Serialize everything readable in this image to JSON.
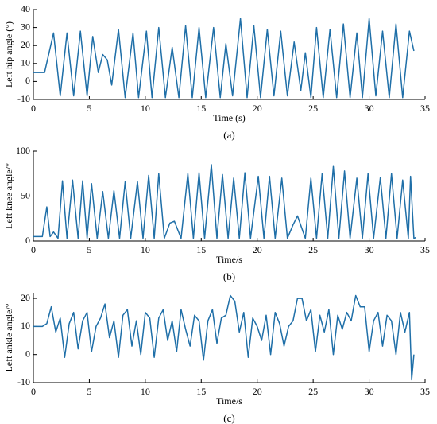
{
  "chart_data": [
    {
      "type": "line",
      "xlabel": "Time (s)",
      "ylabel": "Left hip angle (°)",
      "caption": "(a)",
      "color": "#1f6fa8",
      "xlim": [
        0,
        35
      ],
      "xticks": [
        0,
        5,
        10,
        15,
        20,
        25,
        30,
        35
      ],
      "ylim": [
        -10,
        40
      ],
      "yticks": [
        -10,
        0,
        10,
        20,
        30,
        40
      ],
      "x": [
        0,
        1.0,
        1.8,
        2.4,
        3.0,
        3.6,
        4.2,
        4.8,
        5.3,
        5.8,
        6.2,
        6.6,
        7.0,
        7.6,
        8.2,
        8.9,
        9.4,
        10.1,
        10.6,
        11.2,
        11.8,
        12.4,
        13.0,
        13.6,
        14.2,
        14.8,
        15.4,
        16.1,
        16.7,
        17.2,
        17.8,
        18.5,
        19.1,
        19.7,
        20.3,
        20.9,
        21.5,
        22.1,
        22.7,
        23.3,
        23.9,
        24.3,
        24.8,
        25.3,
        25.9,
        26.5,
        27.1,
        27.7,
        28.3,
        28.9,
        29.4,
        30.0,
        30.6,
        31.2,
        31.8,
        32.4,
        33.0,
        33.6,
        34.0
      ],
      "values": [
        5,
        5,
        27,
        -8,
        27,
        -8,
        28,
        -8,
        25,
        5,
        15,
        12,
        -2,
        29,
        -9,
        27,
        -9,
        28,
        -9,
        30,
        -9,
        19,
        -9,
        31,
        -9,
        30,
        -9,
        30,
        -9,
        21,
        -8,
        35,
        -9,
        31,
        -9,
        29,
        -8,
        28,
        -8,
        22,
        -5,
        16,
        -9,
        30,
        -9,
        29,
        -9,
        32,
        -9,
        27,
        -9,
        35,
        -8,
        28,
        -9,
        32,
        -9,
        28,
        17
      ]
    },
    {
      "type": "line",
      "xlabel": "Time/s",
      "ylabel": "Left knee angle/°",
      "caption": "(b)",
      "color": "#1f6fa8",
      "xlim": [
        0,
        35
      ],
      "xticks": [
        0,
        5,
        10,
        15,
        20,
        25,
        30,
        35
      ],
      "ylim": [
        0,
        100
      ],
      "yticks": [
        0,
        50,
        100
      ],
      "x": [
        0,
        0.8,
        1.2,
        1.5,
        1.8,
        2.2,
        2.6,
        3.0,
        3.5,
        4.0,
        4.4,
        4.8,
        5.2,
        5.7,
        6.2,
        6.7,
        7.2,
        7.7,
        8.2,
        8.7,
        9.3,
        9.8,
        10.3,
        10.8,
        11.2,
        11.7,
        12.2,
        12.6,
        13.2,
        13.8,
        14.3,
        14.8,
        15.3,
        15.9,
        16.4,
        16.9,
        17.4,
        17.9,
        18.4,
        18.9,
        19.4,
        20.1,
        20.6,
        21.1,
        21.6,
        22.2,
        22.7,
        23.2,
        23.6,
        24.3,
        24.8,
        25.3,
        25.8,
        26.3,
        26.8,
        27.3,
        27.8,
        28.3,
        28.9,
        29.4,
        29.9,
        30.4,
        31.0,
        31.5,
        32.0,
        32.5,
        33.0,
        33.5,
        33.7,
        34.0,
        34.2
      ],
      "values": [
        5,
        5,
        38,
        5,
        10,
        3,
        67,
        3,
        68,
        3,
        67,
        3,
        64,
        3,
        55,
        3,
        56,
        3,
        66,
        3,
        66,
        3,
        73,
        3,
        75,
        3,
        20,
        22,
        3,
        75,
        3,
        76,
        3,
        85,
        3,
        74,
        3,
        70,
        3,
        76,
        3,
        72,
        3,
        72,
        3,
        70,
        3,
        18,
        28,
        3,
        70,
        3,
        75,
        3,
        83,
        3,
        78,
        3,
        70,
        3,
        75,
        3,
        71,
        3,
        75,
        3,
        68,
        3,
        72,
        3,
        4
      ]
    },
    {
      "type": "line",
      "xlabel": "Time/s",
      "ylabel": "Left ankle angle/°",
      "caption": "(c)",
      "color": "#1f6fa8",
      "xlim": [
        0,
        35
      ],
      "xticks": [
        0,
        5,
        10,
        15,
        20,
        25,
        30,
        35
      ],
      "ylim": [
        -10,
        22
      ],
      "yticks": [
        -10,
        0,
        10,
        20
      ],
      "x": [
        0,
        0.4,
        0.8,
        1.2,
        1.6,
        2.0,
        2.4,
        2.8,
        3.2,
        3.6,
        4.0,
        4.4,
        4.8,
        5.2,
        5.6,
        6.0,
        6.4,
        6.8,
        7.2,
        7.6,
        8.0,
        8.4,
        8.8,
        9.2,
        9.6,
        10.0,
        10.4,
        10.8,
        11.2,
        11.6,
        12.0,
        12.4,
        12.8,
        13.2,
        13.6,
        14.0,
        14.4,
        14.8,
        15.2,
        15.6,
        16.0,
        16.4,
        16.8,
        17.2,
        17.6,
        18.0,
        18.4,
        18.8,
        19.2,
        19.6,
        20.0,
        20.4,
        20.8,
        21.2,
        21.6,
        22.0,
        22.4,
        22.8,
        23.2,
        23.6,
        24.0,
        24.4,
        24.8,
        25.2,
        25.6,
        26.0,
        26.4,
        26.8,
        27.2,
        27.6,
        28.0,
        28.4,
        28.8,
        29.2,
        29.6,
        30.0,
        30.4,
        30.8,
        31.2,
        31.6,
        32.0,
        32.4,
        32.8,
        33.2,
        33.6,
        33.8,
        34.0
      ],
      "values": [
        10,
        10,
        10,
        11,
        17,
        8,
        13,
        -1,
        11,
        15,
        2,
        12,
        15,
        1,
        10,
        13,
        18,
        6,
        12,
        -1,
        14,
        16,
        3,
        12,
        0,
        15,
        13,
        -1,
        13,
        16,
        5,
        12,
        1,
        16,
        9,
        3,
        14,
        12,
        -2,
        12,
        16,
        4,
        13,
        14,
        21,
        19,
        8,
        15,
        -1,
        13,
        10,
        5,
        14,
        0,
        15,
        11,
        3,
        10,
        12,
        20,
        20,
        12,
        16,
        1,
        14,
        8,
        16,
        0,
        14,
        9,
        15,
        12,
        21,
        17,
        17,
        1,
        12,
        15,
        3,
        14,
        12,
        0,
        15,
        8,
        15,
        -9,
        0
      ]
    }
  ]
}
